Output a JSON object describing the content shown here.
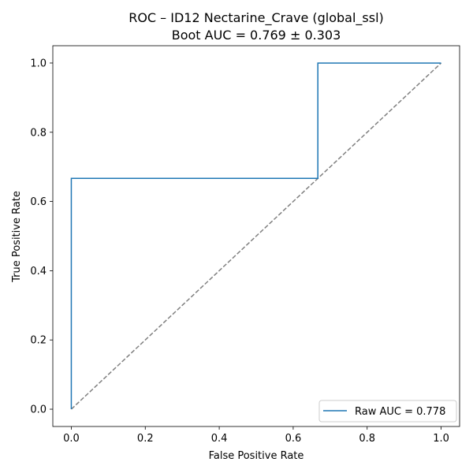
{
  "chart_data": {
    "type": "line",
    "title": "ROC – ID12 Nectarine_Crave (global_ssl)",
    "subtitle": "Boot AUC = 0.769 ± 0.303",
    "xlabel": "False Positive Rate",
    "ylabel": "True Positive Rate",
    "xlim": [
      -0.05,
      1.05
    ],
    "ylim": [
      -0.05,
      1.05
    ],
    "xticks": [
      "0.0",
      "0.2",
      "0.4",
      "0.6",
      "0.8",
      "1.0"
    ],
    "yticks": [
      "0.0",
      "0.2",
      "0.4",
      "0.6",
      "0.8",
      "1.0"
    ],
    "grid": false,
    "legend_position": "lower-right",
    "series": [
      {
        "name": "Raw AUC = 0.778",
        "color": "#1f77b4",
        "step": true,
        "x": [
          0.0,
          0.0,
          0.6667,
          0.6667,
          1.0
        ],
        "y": [
          0.0,
          0.6667,
          0.6667,
          1.0,
          1.0
        ]
      }
    ],
    "reference_line": {
      "style": "dashed",
      "color": "#808080",
      "x": [
        0.0,
        1.0
      ],
      "y": [
        0.0,
        1.0
      ]
    }
  }
}
